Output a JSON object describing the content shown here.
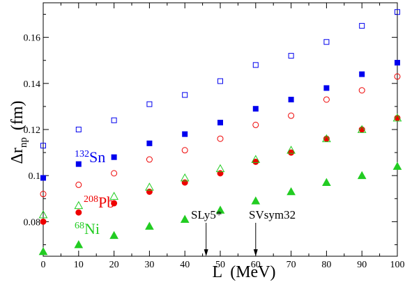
{
  "chart_data": {
    "type": "scatter",
    "xlabel": "L  (MeV)",
    "ylabel": "Δr",
    "ylabel_sub": "np",
    "ylabel_unit": "(fm)",
    "xlim": [
      0,
      100
    ],
    "ylim": [
      0.065,
      0.175
    ],
    "xticks": [
      0,
      10,
      20,
      30,
      40,
      50,
      60,
      70,
      80,
      90,
      100
    ],
    "yticks": [
      0.08,
      0.1,
      0.12,
      0.14,
      0.16
    ],
    "ytick_labels": [
      "0.08",
      "0.1",
      "0.12",
      "0.14",
      "0.16"
    ],
    "grid": false,
    "series": [
      {
        "name": "132Sn",
        "marker": "square-open",
        "color": "#0000ee",
        "x": [
          0,
          10,
          20,
          30,
          40,
          50,
          60,
          70,
          80,
          90,
          100
        ],
        "y": [
          0.113,
          0.12,
          0.124,
          0.131,
          0.135,
          0.141,
          0.148,
          0.152,
          0.158,
          0.165,
          0.171
        ]
      },
      {
        "name": "132Sn",
        "marker": "square-filled",
        "color": "#0000ee",
        "x": [
          0,
          10,
          20,
          30,
          40,
          50,
          60,
          70,
          80,
          90,
          100
        ],
        "y": [
          0.099,
          0.105,
          0.108,
          0.114,
          0.118,
          0.123,
          0.129,
          0.133,
          0.138,
          0.144,
          0.149
        ]
      },
      {
        "name": "208Pb",
        "marker": "circle-open",
        "color": "#ee0000",
        "x": [
          0,
          10,
          20,
          30,
          40,
          50,
          60,
          70,
          80,
          90,
          100
        ],
        "y": [
          0.092,
          0.096,
          0.101,
          0.107,
          0.111,
          0.116,
          0.122,
          0.126,
          0.133,
          0.137,
          0.143
        ]
      },
      {
        "name": "208Pb",
        "marker": "circle-filled",
        "color": "#ee0000",
        "x": [
          0,
          10,
          20,
          30,
          40,
          50,
          60,
          70,
          80,
          90,
          100
        ],
        "y": [
          0.08,
          0.084,
          0.088,
          0.093,
          0.097,
          0.101,
          0.106,
          0.11,
          0.116,
          0.12,
          0.125
        ]
      },
      {
        "name": "68Ni",
        "marker": "triangle-open",
        "color": "#22cc22",
        "x": [
          0,
          10,
          20,
          30,
          40,
          50,
          60,
          70,
          80,
          90,
          100
        ],
        "y": [
          0.083,
          0.087,
          0.091,
          0.095,
          0.099,
          0.103,
          0.107,
          0.111,
          0.116,
          0.12,
          0.125
        ]
      },
      {
        "name": "68Ni",
        "marker": "triangle-filled",
        "color": "#22cc22",
        "x": [
          0,
          10,
          20,
          30,
          40,
          50,
          60,
          70,
          80,
          90,
          100
        ],
        "y": [
          0.067,
          0.07,
          0.074,
          0.078,
          0.081,
          0.085,
          0.089,
          0.093,
          0.097,
          0.1,
          0.104
        ]
      }
    ],
    "series_labels": [
      {
        "mass": "132",
        "symbol": "Sn",
        "color": "#0000ee"
      },
      {
        "mass": "208",
        "symbol": "Pb",
        "color": "#ee0000"
      },
      {
        "mass": "68",
        "symbol": "Ni",
        "color": "#22cc22"
      }
    ],
    "annotations": [
      {
        "text": "SLy5*",
        "arrow_x": 46
      },
      {
        "text": "SVsym32",
        "arrow_x": 60
      }
    ]
  }
}
